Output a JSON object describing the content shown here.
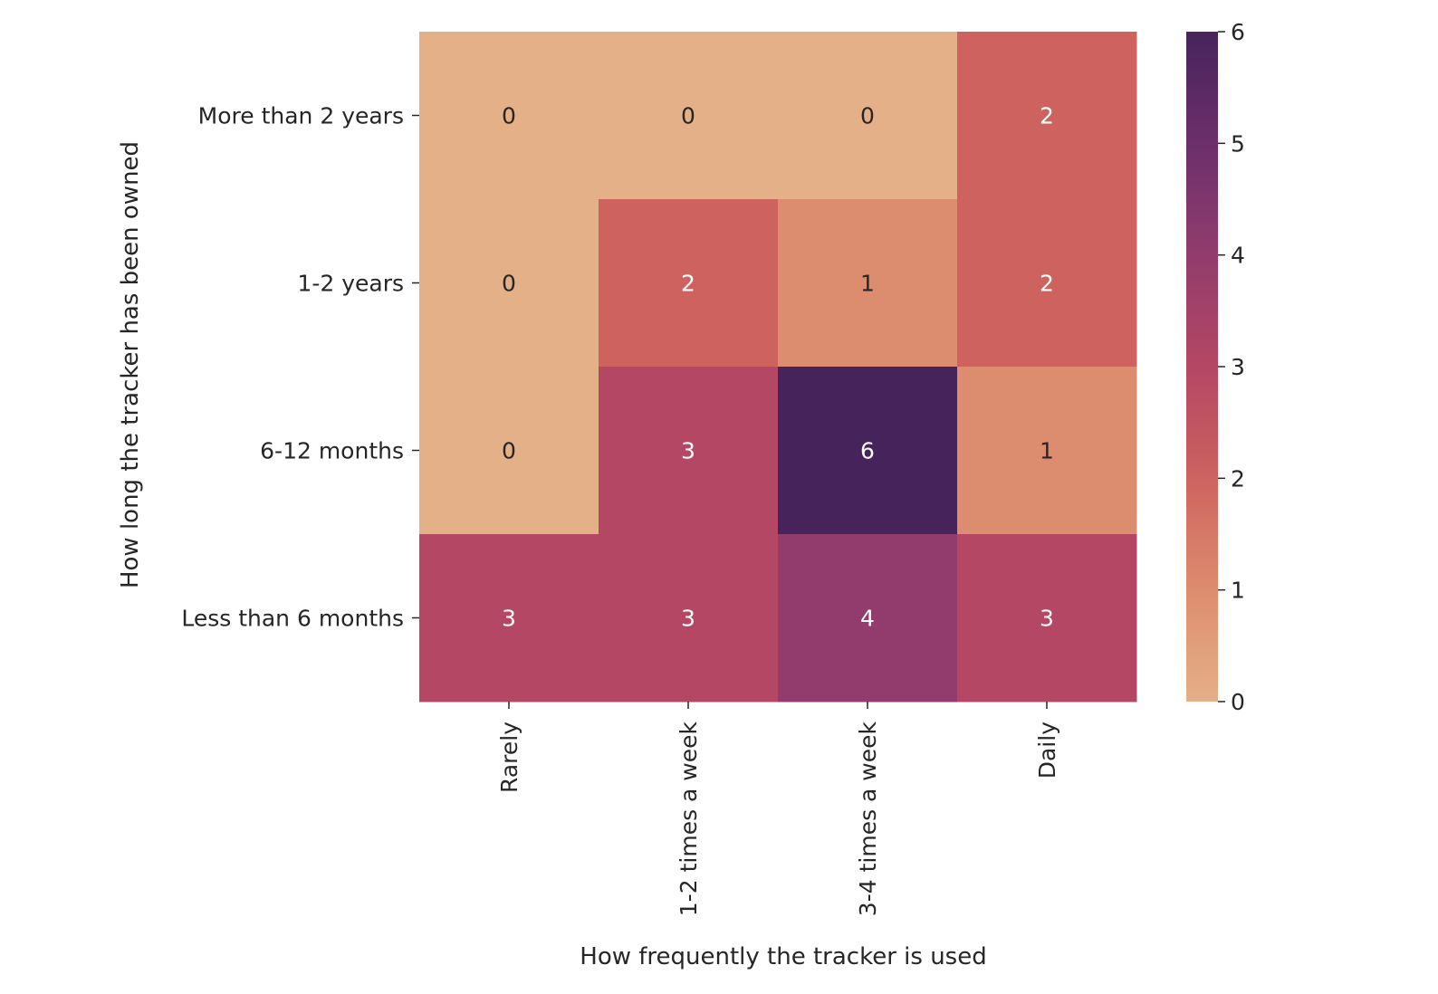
{
  "chart_data": {
    "type": "heatmap",
    "title": "",
    "xlabel": "How frequently the tracker is used",
    "ylabel": "How long the tracker has been owned",
    "x_categories": [
      "Rarely",
      "1-2 times a week",
      "3-4 times a week",
      "Daily"
    ],
    "y_categories": [
      "More than 2 years",
      "1-2 years",
      "6-12 months",
      "Less than 6 months"
    ],
    "values": [
      [
        0,
        0,
        0,
        2
      ],
      [
        0,
        2,
        1,
        2
      ],
      [
        0,
        3,
        6,
        1
      ],
      [
        3,
        3,
        4,
        3
      ]
    ],
    "colorbar": {
      "min": 0,
      "max": 6,
      "ticks": [
        0,
        1,
        2,
        3,
        4,
        5,
        6
      ],
      "colormap": "flare"
    },
    "annotations": true,
    "grid": false
  }
}
